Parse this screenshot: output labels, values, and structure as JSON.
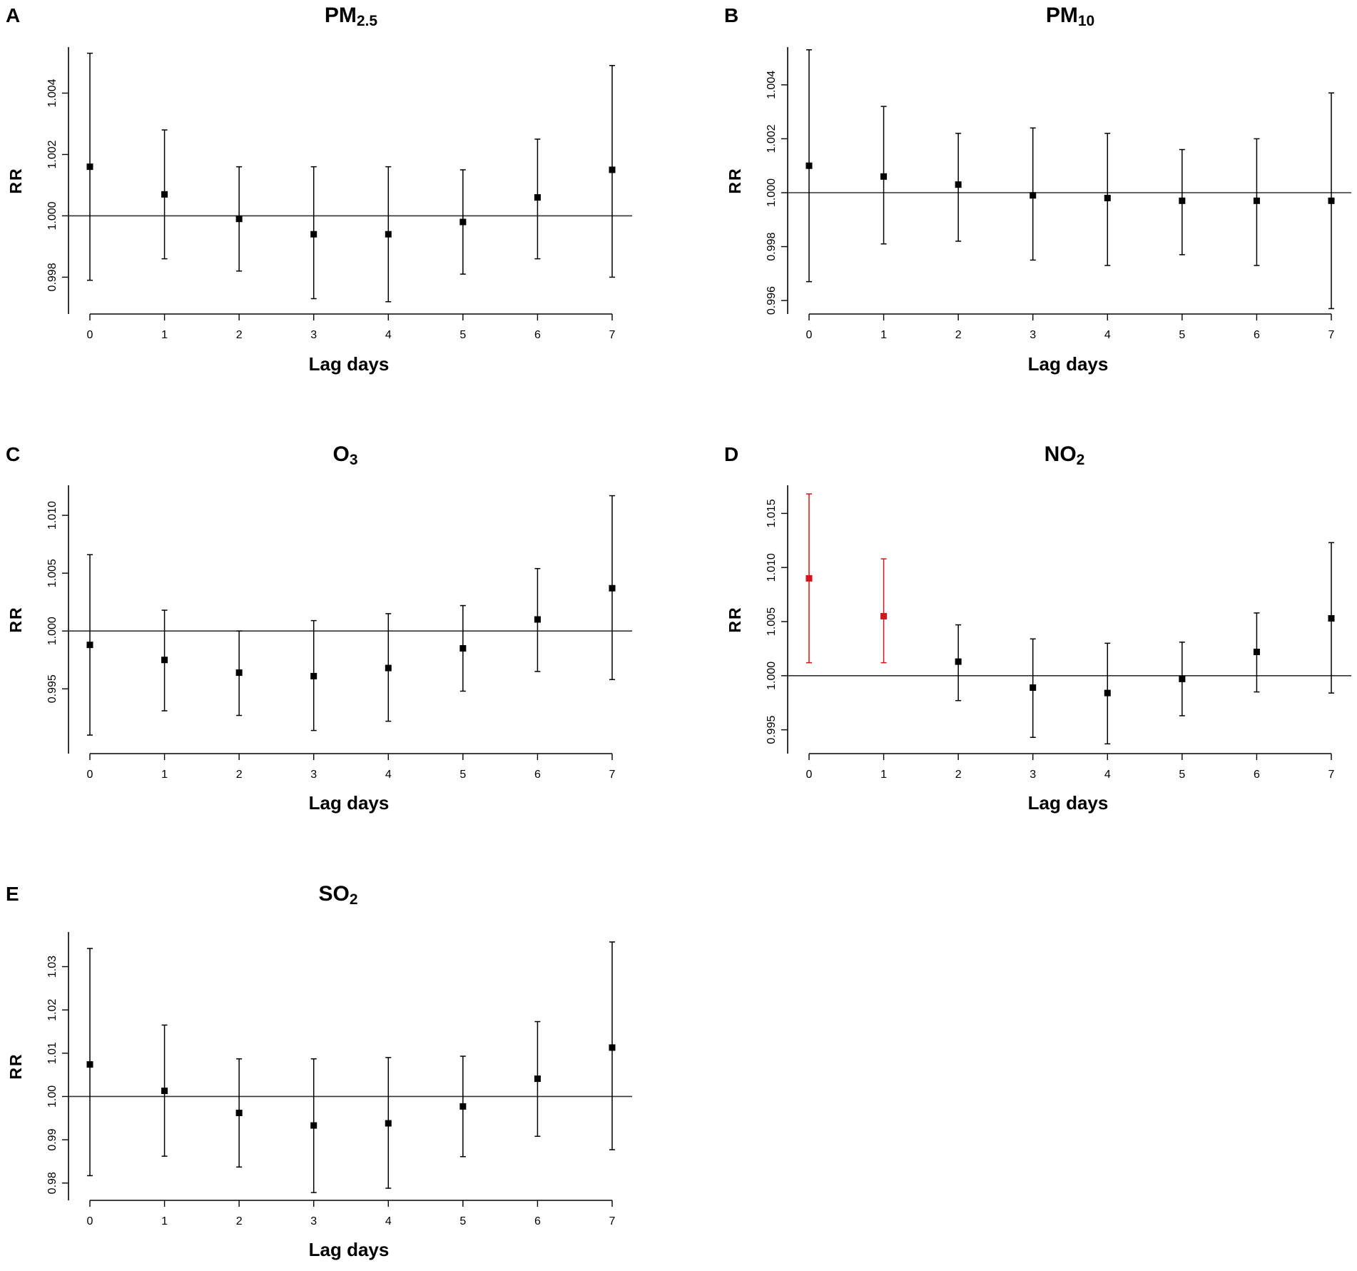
{
  "colors": {
    "default": "#000000",
    "significant": "#d4151b",
    "axis": "#000000"
  },
  "chart_data": [
    {
      "type": "scatter",
      "panel": "A",
      "title_main": "PM",
      "title_sub": "2.5",
      "xlabel": "Lag days",
      "ylabel": "RR",
      "categories": [
        "0",
        "1",
        "2",
        "3",
        "4",
        "5",
        "6",
        "7"
      ],
      "ylim": [
        0.9968,
        1.0055
      ],
      "yticks": [
        0.998,
        1.0,
        1.002,
        1.004
      ],
      "ytick_labels": [
        "0.998",
        "1.000",
        "1.002",
        "1.004"
      ],
      "ref_line": 1.0,
      "series": [
        {
          "name": "RR",
          "values": [
            1.0016,
            1.0007,
            0.9999,
            0.9994,
            0.9994,
            0.9998,
            1.0006,
            1.0015
          ],
          "ci_lower": [
            0.9979,
            0.9986,
            0.9982,
            0.9973,
            0.9972,
            0.9981,
            0.9986,
            0.998
          ],
          "ci_upper": [
            1.0053,
            1.0028,
            1.0016,
            1.0016,
            1.0016,
            1.0015,
            1.0025,
            1.0049
          ],
          "significant": [
            false,
            false,
            false,
            false,
            false,
            false,
            false,
            false
          ]
        }
      ]
    },
    {
      "type": "scatter",
      "panel": "B",
      "title_main": "PM",
      "title_sub": "10",
      "xlabel": "Lag days",
      "ylabel": "RR",
      "categories": [
        "0",
        "1",
        "2",
        "3",
        "4",
        "5",
        "6",
        "7"
      ],
      "ylim": [
        0.9955,
        1.0054
      ],
      "yticks": [
        0.996,
        0.998,
        1.0,
        1.002,
        1.004
      ],
      "ytick_labels": [
        "0.996",
        "0.998",
        "1.000",
        "1.002",
        "1.004"
      ],
      "ref_line": 1.0,
      "series": [
        {
          "name": "RR",
          "values": [
            1.001,
            1.0006,
            1.0003,
            0.9999,
            0.9998,
            0.9997,
            0.9997,
            0.9997
          ],
          "ci_lower": [
            0.9967,
            0.9981,
            0.9982,
            0.9975,
            0.9973,
            0.9977,
            0.9973,
            0.9957
          ],
          "ci_upper": [
            1.0053,
            1.0032,
            1.0022,
            1.0024,
            1.0022,
            1.0016,
            1.002,
            1.0037
          ],
          "significant": [
            false,
            false,
            false,
            false,
            false,
            false,
            false,
            false
          ]
        }
      ]
    },
    {
      "type": "scatter",
      "panel": "C",
      "title_main": "O",
      "title_sub": "3",
      "xlabel": "Lag days",
      "ylabel": "RR",
      "categories": [
        "0",
        "1",
        "2",
        "3",
        "4",
        "5",
        "6",
        "7"
      ],
      "ylim": [
        0.9894,
        1.0126
      ],
      "yticks": [
        0.995,
        1.0,
        1.005,
        1.01
      ],
      "ytick_labels": [
        "0.995",
        "1.000",
        "1.005",
        "1.010"
      ],
      "ref_line": 1.0,
      "series": [
        {
          "name": "RR",
          "values": [
            0.9988,
            0.9975,
            0.9964,
            0.9961,
            0.9968,
            0.9985,
            1.001,
            1.0037
          ],
          "ci_lower": [
            0.991,
            0.9931,
            0.9927,
            0.9914,
            0.9922,
            0.9948,
            0.9965,
            0.9958
          ],
          "ci_upper": [
            1.0066,
            1.0018,
            1.0,
            1.0009,
            1.0015,
            1.0022,
            1.0054,
            1.0117
          ],
          "significant": [
            false,
            false,
            false,
            false,
            false,
            false,
            false,
            false
          ]
        }
      ]
    },
    {
      "type": "scatter",
      "panel": "D",
      "title_main": "NO",
      "title_sub": "2",
      "xlabel": "Lag days",
      "ylabel": "RR",
      "categories": [
        "0",
        "1",
        "2",
        "3",
        "4",
        "5",
        "6",
        "7"
      ],
      "ylim": [
        0.9928,
        1.0176
      ],
      "yticks": [
        0.995,
        1.0,
        1.005,
        1.01,
        1.015
      ],
      "ytick_labels": [
        "0.995",
        "1.000",
        "1.005",
        "1.010",
        "1.015"
      ],
      "ref_line": 1.0,
      "series": [
        {
          "name": "RR",
          "values": [
            1.009,
            1.0055,
            1.0013,
            0.9989,
            0.9984,
            0.9997,
            1.0022,
            1.0053
          ],
          "ci_lower": [
            1.0012,
            1.0012,
            0.9977,
            0.9943,
            0.9937,
            0.9963,
            0.9985,
            0.9984
          ],
          "ci_upper": [
            1.0168,
            1.0108,
            1.0047,
            1.0034,
            1.003,
            1.0031,
            1.0058,
            1.0123
          ],
          "significant": [
            true,
            true,
            false,
            false,
            false,
            false,
            false,
            false
          ]
        }
      ]
    },
    {
      "type": "scatter",
      "panel": "E",
      "title_main": "SO",
      "title_sub": "2",
      "xlabel": "Lag days",
      "ylabel": "RR",
      "categories": [
        "0",
        "1",
        "2",
        "3",
        "4",
        "5",
        "6",
        "7"
      ],
      "ylim": [
        0.976,
        1.038
      ],
      "yticks": [
        0.98,
        0.99,
        1.0,
        1.01,
        1.02,
        1.03
      ],
      "ytick_labels": [
        "0.98",
        "0.99",
        "1.00",
        "1.01",
        "1.02",
        "1.03"
      ],
      "ref_line": 1.0,
      "series": [
        {
          "name": "RR",
          "values": [
            1.0074,
            1.0013,
            0.9962,
            0.9933,
            0.9938,
            0.9977,
            1.0041,
            1.0113
          ],
          "ci_lower": [
            0.9817,
            0.9862,
            0.9837,
            0.9778,
            0.9788,
            0.9861,
            0.9908,
            0.9877
          ],
          "ci_upper": [
            1.0342,
            1.0165,
            1.0087,
            1.0087,
            1.009,
            1.0093,
            1.0173,
            1.0357
          ],
          "significant": [
            false,
            false,
            false,
            false,
            false,
            false,
            false,
            false
          ]
        }
      ]
    }
  ]
}
